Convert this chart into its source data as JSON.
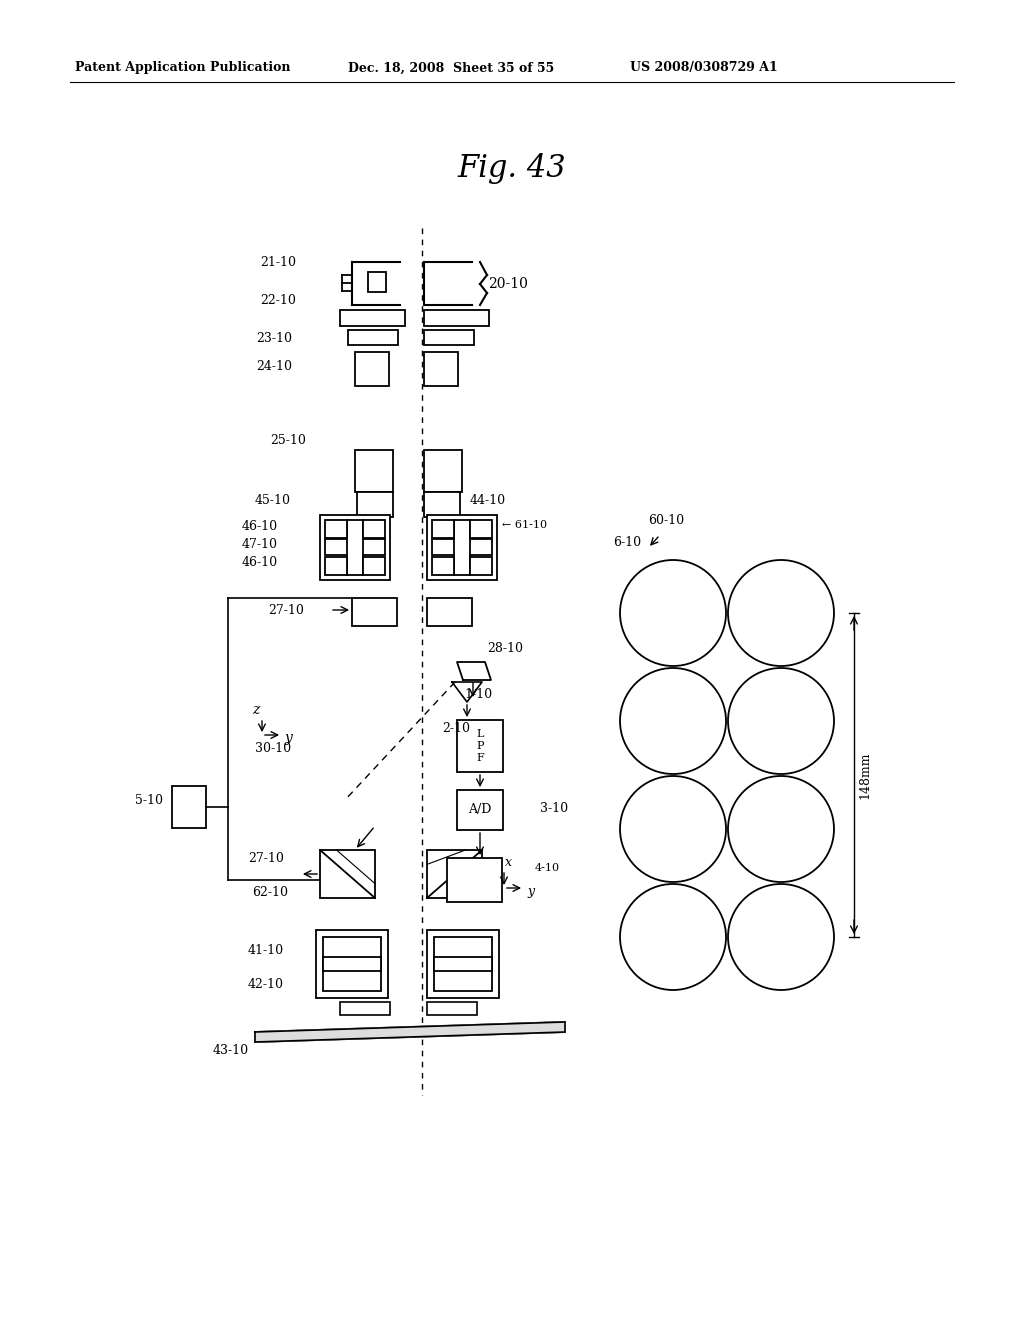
{
  "title": "Fig. 43",
  "header_left": "Patent Application Publication",
  "header_mid": "Dec. 18, 2008  Sheet 35 of 55",
  "header_right": "US 2008/0308729 A1",
  "bg_color": "#ffffff"
}
